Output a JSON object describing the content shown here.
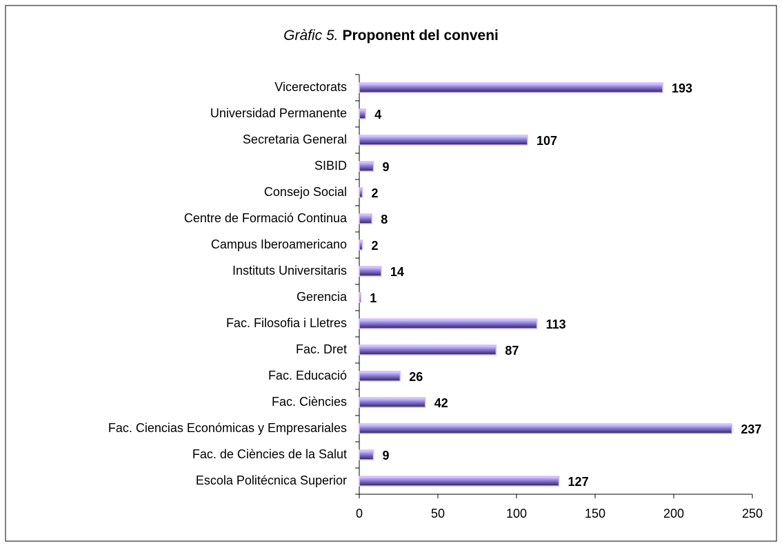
{
  "chart_data": {
    "type": "bar",
    "orientation": "horizontal",
    "title_prefix": "Gràfic 5.",
    "title": "Proponent del conveni",
    "categories": [
      "Vicerectorats",
      "Universidad Permanente",
      "Secretaria General",
      "SIBID",
      "Consejo Social",
      "Centre de Formació Continua",
      "Campus Iberoamericano",
      "Instituts Universitaris",
      "Gerencia",
      "Fac. Filosofia i Lletres",
      "Fac. Dret",
      "Fac. Educació",
      "Fac. Ciències",
      "Fac. Ciencias Económicas y Empresariales",
      "Fac. de Ciències de la Salut",
      "Escola Politécnica Superior"
    ],
    "values": [
      193,
      4,
      107,
      9,
      2,
      8,
      2,
      14,
      1,
      113,
      87,
      26,
      42,
      237,
      9,
      127
    ],
    "color": "#8c7ae0",
    "xlim": [
      0,
      250
    ],
    "xticks": [
      0,
      50,
      100,
      150,
      200,
      250
    ],
    "grid": false
  }
}
